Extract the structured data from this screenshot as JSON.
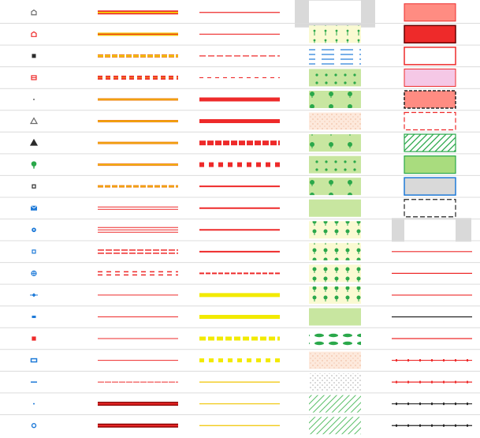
{
  "legend": {
    "colors": {
      "red": "#ee2a2a",
      "orange": "#f07d1e",
      "yellow": "#f2ea00",
      "gold": "#f0c400",
      "blue": "#1e7ad8",
      "green": "#2aa84a",
      "dark": "#2b2b2b",
      "gray": "#6a6a6a",
      "lightGreen": "#c8e6a0",
      "paleYellow": "#fafad2",
      "pinkFill": "#f5c8e6",
      "salmonFill": "#ff8c82",
      "grayFill": "#d9d9d9",
      "gridLine": "#dcdcdc"
    },
    "column_1_symbols": [
      {
        "name": "gray-house",
        "icon": "house-icon",
        "color": "gray"
      },
      {
        "name": "red-house",
        "icon": "house-icon",
        "color": "red"
      },
      {
        "name": "black-square",
        "icon": "square-icon",
        "color": "dark"
      },
      {
        "name": "red-box",
        "icon": "box-icon",
        "color": "red"
      },
      {
        "name": "tiny-dot",
        "icon": "dot-icon",
        "color": "gray"
      },
      {
        "name": "gray-triangle",
        "icon": "triangle-icon",
        "color": "gray"
      },
      {
        "name": "black-triangle",
        "icon": "triangle-icon",
        "color": "dark"
      },
      {
        "name": "green-tree",
        "icon": "tree-icon",
        "color": "green"
      },
      {
        "name": "black-small-square",
        "icon": "small-square-icon",
        "color": "dark"
      },
      {
        "name": "blue-envelope",
        "icon": "envelope-icon",
        "color": "blue"
      },
      {
        "name": "blue-circle",
        "icon": "circle-icon",
        "color": "blue"
      },
      {
        "name": "blue-small-square",
        "icon": "small-square-icon",
        "color": "blue"
      },
      {
        "name": "blue-crosshair",
        "icon": "crosshair-icon",
        "color": "blue"
      },
      {
        "name": "blue-diamond",
        "icon": "diamond-icon",
        "color": "blue"
      },
      {
        "name": "blue-dash",
        "icon": "dash-icon",
        "color": "blue"
      },
      {
        "name": "red-small-square",
        "icon": "small-square-icon",
        "color": "red"
      },
      {
        "name": "blue-rect",
        "icon": "rect-icon",
        "color": "blue"
      },
      {
        "name": "blue-line",
        "icon": "line-icon",
        "color": "blue"
      },
      {
        "name": "blue-dot",
        "icon": "dot-icon",
        "color": "blue"
      },
      {
        "name": "blue-ring",
        "icon": "ring-icon",
        "color": "blue"
      }
    ],
    "column_2_double_lines": [
      "red-yellow-solid",
      "yellow-red-solid",
      "orange-yellow-dashed",
      "red-orange-dashed",
      "orange-solid",
      "orange-solid",
      "orange-solid",
      "orange-solid",
      "orange-dashed",
      "red-double",
      "red-triple",
      "red-double-dashed",
      "red-double-dashed-long",
      "red-thin",
      "red-thin",
      "red-thin",
      "red-thin",
      "red-thin-dashed",
      "dark-red-thick",
      "dark-red-thick"
    ],
    "column_3_lines": [
      "red-thin",
      "red-thin",
      "red-dashed",
      "red-dash-dot",
      "red-thick",
      "red-thick",
      "red-thick-dashed",
      "red-thick-dotted",
      "red-medium",
      "red-medium",
      "red-medium",
      "red-medium",
      "red-dashed-medium",
      "yellow-thick",
      "yellow-thick",
      "yellow-thick-dashed",
      "yellow-thick-dotted",
      "yellow-thin",
      "yellow-thin",
      "yellow-thin"
    ],
    "column_4_patterns": [
      "gray-frame",
      "palm-pattern",
      "water-lines",
      "shrub-dots",
      "sparse-trees-green",
      "sand-dots",
      "round-trees-green",
      "tree-rows",
      "mixed-trees",
      "bushes",
      "dense-round-trees",
      "sparse-trees-yellow",
      "tree-mix-yellow",
      "mixed-dense-trees",
      "plain-green",
      "clouds-pattern",
      "sand-dots-2",
      "speckles-dark",
      "hatched-green",
      "hatched-green-2"
    ],
    "column_5_areas": [
      "salmon-fill",
      "red-fill",
      "red-outline",
      "pink-fill",
      "salmon-black-dashed",
      "red-dashed-outline",
      "green-hatched",
      "green-fill",
      "gray-blue-outline",
      "black-dashed-outline",
      "gray-frame",
      "red-line",
      "red-line",
      "red-line",
      "dark-line",
      "red-line",
      "red-tick-line",
      "red-tick-line",
      "dark-tick-line",
      "dark-tick-line"
    ]
  }
}
